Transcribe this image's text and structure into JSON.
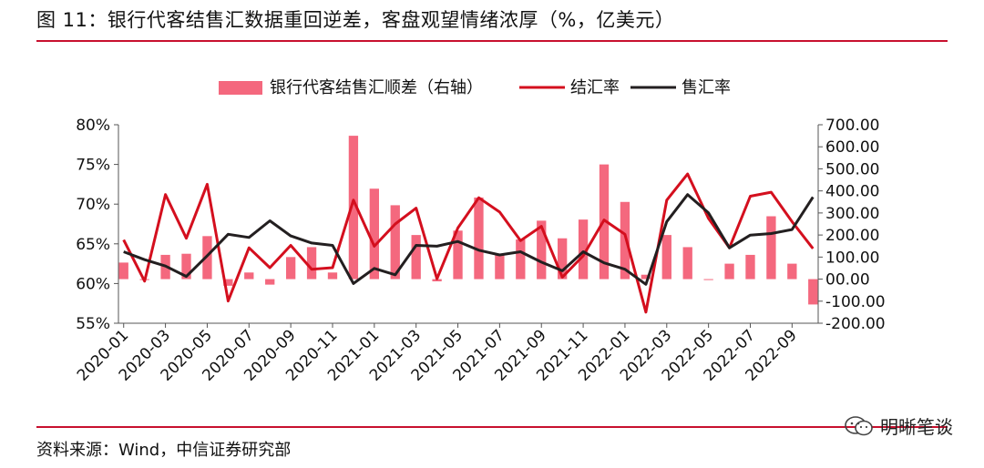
{
  "header": {
    "title": "图 11：银行代客结售汇数据重回逆差，客盘观望情绪浓厚（%，亿美元）"
  },
  "footer": {
    "source": "资料来源：Wind，中信证券研究部",
    "watermark": "明晰笔谈",
    "watermark_logo": "wechat-logo-icon"
  },
  "colors": {
    "bar": "#f4687e",
    "settle_line": "#d40f1e",
    "sale_line": "#231f20",
    "accent_rule": "#c8102e"
  },
  "chart_data": {
    "type": "bar+line",
    "title": "",
    "legend_position": "top",
    "grid": false,
    "categories": [
      "2020-01",
      "2020-02",
      "2020-03",
      "2020-04",
      "2020-05",
      "2020-06",
      "2020-07",
      "2020-08",
      "2020-09",
      "2020-10",
      "2020-11",
      "2020-12",
      "2021-01",
      "2021-02",
      "2021-03",
      "2021-04",
      "2021-05",
      "2021-06",
      "2021-07",
      "2021-08",
      "2021-09",
      "2021-10",
      "2021-11",
      "2021-12",
      "2022-01",
      "2022-02",
      "2022-03",
      "2022-04",
      "2022-05",
      "2022-06",
      "2022-07",
      "2022-08",
      "2022-09",
      "2022-10"
    ],
    "x_tick_labels": [
      "2020-01",
      "2020-03",
      "2020-05",
      "2020-07",
      "2020-09",
      "2020-11",
      "2021-01",
      "2021-03",
      "2021-05",
      "2021-07",
      "2021-09",
      "2021-11",
      "2022-01",
      "2022-03",
      "2022-05",
      "2022-07",
      "2022-09"
    ],
    "left_axis": {
      "ylim": [
        55,
        80
      ],
      "ticks": [
        "80%",
        "75%",
        "70%",
        "65%",
        "60%",
        "55%"
      ]
    },
    "right_axis": {
      "ylim": [
        -200,
        700
      ],
      "ticks": [
        "700.00",
        "600.00",
        "500.00",
        "400.00",
        "300.00",
        "200.00",
        "100.00",
        "00.00",
        "-100.00",
        "-200.00"
      ]
    },
    "series": [
      {
        "name": "银行代客结售汇顺差（右轴）",
        "kind": "bar",
        "axis": "right",
        "values": [
          75,
          0,
          110,
          115,
          195,
          -30,
          30,
          -25,
          100,
          145,
          30,
          650,
          410,
          335,
          200,
          -10,
          220,
          370,
          110,
          180,
          265,
          185,
          270,
          520,
          350,
          20,
          200,
          145,
          0,
          70,
          110,
          285,
          70,
          -115
        ]
      },
      {
        "name": "结汇率",
        "kind": "line",
        "axis": "left",
        "values": [
          65.5,
          60.3,
          71.2,
          65.7,
          72.5,
          57.8,
          64.5,
          62.0,
          64.8,
          61.8,
          62.0,
          70.5,
          64.7,
          67.5,
          69.5,
          60.6,
          67.0,
          70.8,
          69.0,
          65.4,
          67.2,
          60.8,
          63.5,
          68.0,
          66.2,
          56.4,
          70.5,
          73.8,
          68.2,
          64.5,
          71.0,
          71.5,
          67.8,
          64.4
        ]
      },
      {
        "name": "售汇率",
        "kind": "line",
        "axis": "left",
        "values": [
          64.0,
          63.0,
          62.2,
          60.9,
          63.5,
          66.2,
          65.8,
          67.9,
          66.0,
          65.1,
          64.8,
          60.0,
          61.9,
          61.1,
          64.8,
          64.7,
          65.3,
          64.2,
          63.6,
          64.0,
          62.7,
          61.6,
          64.0,
          62.6,
          61.8,
          59.9,
          67.8,
          71.2,
          68.9,
          64.5,
          66.1,
          66.3,
          66.8,
          70.9
        ]
      }
    ]
  }
}
